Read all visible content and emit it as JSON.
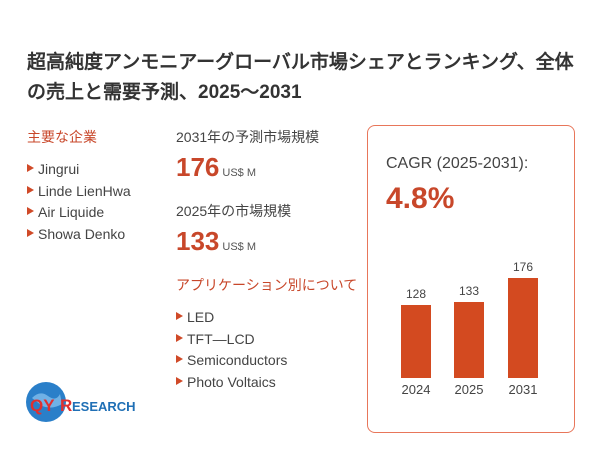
{
  "title": "超高純度アンモニアーグローバル市場シェアとランキング、全体の売上と需要予測、2025～2031",
  "companies": {
    "heading": "主要な企業",
    "items": [
      "Jingrui",
      "Linde LienHwa",
      "Air Liquide",
      "Showa Denko"
    ]
  },
  "forecast": {
    "label": "2031年の予測市場規模",
    "value": "176",
    "unit": "US$ M"
  },
  "current": {
    "label": "2025年の市場規模",
    "value": "133",
    "unit": "US$ M"
  },
  "applications": {
    "heading": "アプリケーション別について",
    "items": [
      "LED",
      "TFT—LCD",
      "Semiconductors",
      "Photo Voltaics"
    ]
  },
  "cagr": {
    "label": "CAGR (2025-2031):",
    "value": "4.8%"
  },
  "logo": {
    "text": "QYRESEARCH"
  },
  "chart_data": {
    "type": "bar",
    "categories": [
      "2024",
      "2025",
      "2031"
    ],
    "values": [
      128,
      133,
      176
    ],
    "ylim": [
      0,
      176
    ],
    "color": "#d34a20"
  }
}
